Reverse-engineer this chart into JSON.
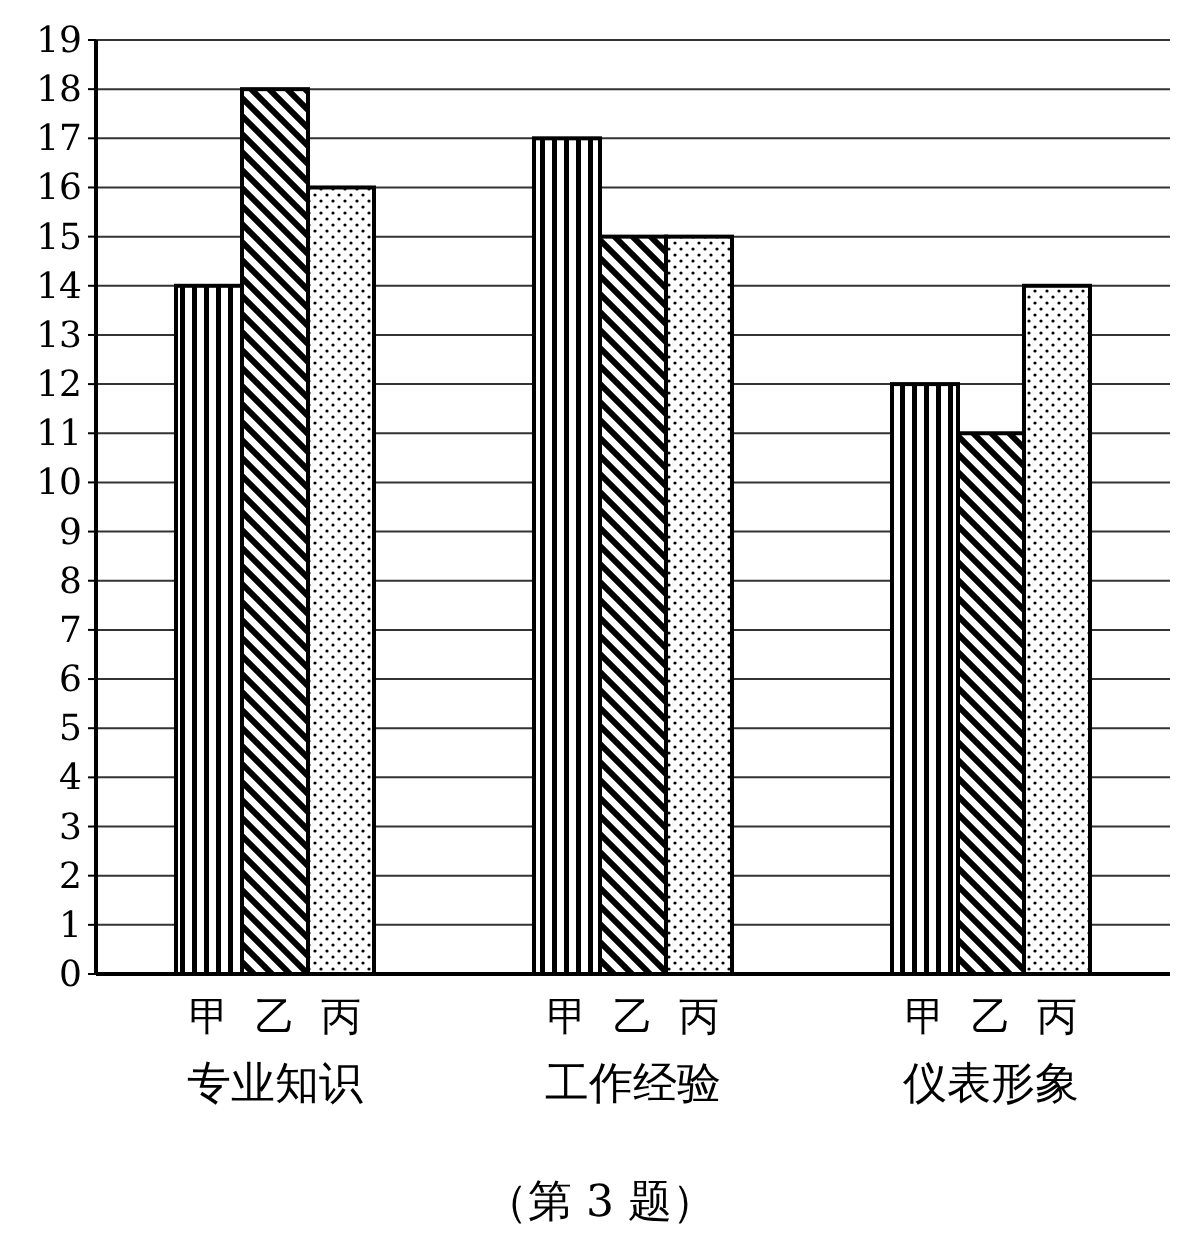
{
  "chart_data": {
    "type": "bar",
    "categories": [
      "专业知识",
      "工作经验",
      "仪表形象"
    ],
    "series": [
      {
        "name": "甲",
        "color": "#000000",
        "values": [
          14,
          17,
          12
        ]
      },
      {
        "name": "乙",
        "color": "#000000",
        "values": [
          18,
          15,
          11
        ]
      },
      {
        "name": "丙",
        "color": "#000000",
        "values": [
          16,
          15,
          14
        ]
      }
    ],
    "ylim": [
      0,
      19
    ],
    "yticks": [
      0,
      1,
      2,
      3,
      4,
      5,
      6,
      7,
      8,
      9,
      10,
      11,
      12,
      13,
      14,
      15,
      16,
      17,
      18,
      19
    ],
    "grid": "y",
    "annotations": [
      "（第 3 题）"
    ]
  }
}
